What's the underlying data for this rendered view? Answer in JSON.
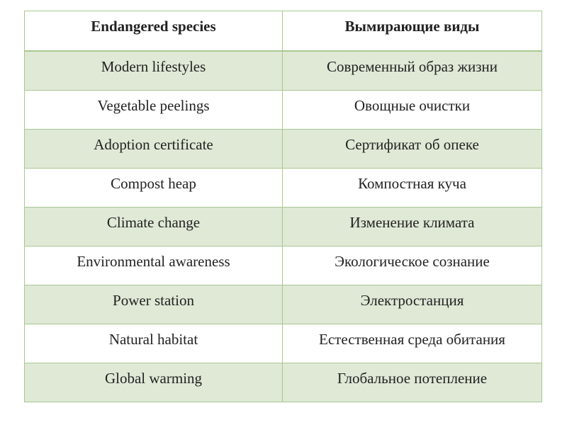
{
  "table": {
    "headers": [
      "Endangered species",
      "Вымирающие виды"
    ],
    "rows": [
      [
        "Modern lifestyles",
        "Современный образ жизни"
      ],
      [
        "Vegetable peelings",
        "Овощные очистки"
      ],
      [
        "Adoption certificate",
        "Сертификат об опеке"
      ],
      [
        "Compost heap",
        "Компостная куча"
      ],
      [
        "Climate change",
        "Изменение климата"
      ],
      [
        "Environmental awareness",
        "Экологическое сознание"
      ],
      [
        "Power station",
        "Электростанция"
      ],
      [
        "Natural habitat",
        "Естественная среда обитания"
      ],
      [
        "Global warming",
        "Глобальное потепление"
      ]
    ]
  },
  "colors": {
    "border": "#a9c790",
    "row_shade": "#dfe9d6",
    "row_plain": "#ffffff"
  }
}
